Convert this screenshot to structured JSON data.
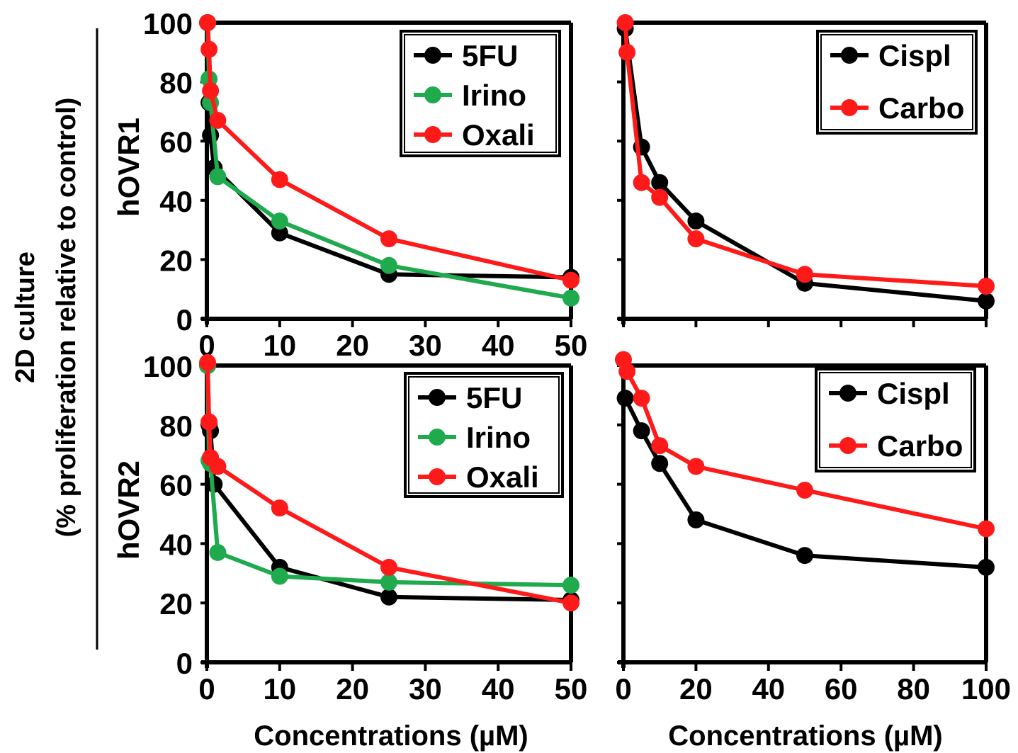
{
  "figure": {
    "ylabel_line1": "2D culture",
    "ylabel_line2": "(% proliferation relative to control)",
    "xlabel": "Concentrations (µM)"
  },
  "colors": {
    "black": "#000000",
    "green": "#1faa4e",
    "red": "#ff1a1a"
  },
  "chart_data": [
    {
      "type": "line",
      "row_label": "hOVR1",
      "xlim": [
        0,
        50
      ],
      "ylim": [
        0,
        100
      ],
      "x_ticks": [
        "0",
        "10",
        "20",
        "30",
        "40",
        "50"
      ],
      "y_ticks": [
        "0",
        "20",
        "40",
        "60",
        "80",
        "100"
      ],
      "legend": "top-right",
      "series": [
        {
          "name": "5FU",
          "color": "#000000",
          "x": [
            0.1,
            0.3,
            0.5,
            1,
            10,
            25,
            50
          ],
          "y": [
            100,
            73,
            62,
            51,
            29,
            15,
            14
          ]
        },
        {
          "name": "Irino",
          "color": "#1faa4e",
          "x": [
            0.1,
            0.3,
            0.5,
            1.5,
            10,
            25,
            50
          ],
          "y": [
            100,
            81,
            73,
            48,
            33,
            18,
            7
          ]
        },
        {
          "name": "Oxali",
          "color": "#ff1a1a",
          "x": [
            0.1,
            0.3,
            0.5,
            1.5,
            10,
            25,
            50
          ],
          "y": [
            100,
            91,
            77,
            67,
            47,
            27,
            13
          ]
        }
      ]
    },
    {
      "type": "line",
      "row_label": "",
      "xlim": [
        0,
        100
      ],
      "ylim": [
        0,
        100
      ],
      "x_ticks": [],
      "y_ticks": [],
      "legend": "top-right",
      "series": [
        {
          "name": "Cispl",
          "color": "#000000",
          "x": [
            0.5,
            5,
            10,
            20,
            50,
            100
          ],
          "y": [
            98,
            58,
            46,
            33,
            12,
            6
          ]
        },
        {
          "name": "Carbo",
          "color": "#ff1a1a",
          "x": [
            0.5,
            1,
            5,
            10,
            20,
            50,
            100
          ],
          "y": [
            100,
            90,
            46,
            41,
            27,
            15,
            11
          ]
        }
      ]
    },
    {
      "type": "line",
      "row_label": "hOVR2",
      "xlim": [
        0,
        50
      ],
      "ylim": [
        0,
        100
      ],
      "x_ticks": [
        "0",
        "10",
        "20",
        "30",
        "40",
        "50"
      ],
      "y_ticks": [
        "0",
        "20",
        "40",
        "60",
        "80",
        "100"
      ],
      "legend": "top-right",
      "series": [
        {
          "name": "5FU",
          "color": "#000000",
          "x": [
            0.1,
            0.3,
            0.5,
            1,
            10,
            25,
            50
          ],
          "y": [
            100,
            80,
            78,
            60,
            32,
            22,
            21
          ]
        },
        {
          "name": "Irino",
          "color": "#1faa4e",
          "x": [
            0.1,
            0.3,
            0.5,
            1.5,
            10,
            25,
            50
          ],
          "y": [
            100,
            68,
            67,
            37,
            29,
            27,
            26
          ]
        },
        {
          "name": "Oxali",
          "color": "#ff1a1a",
          "x": [
            0.1,
            0.3,
            0.5,
            1.5,
            10,
            25,
            50
          ],
          "y": [
            101,
            81,
            69,
            66,
            52,
            32,
            20
          ]
        }
      ]
    },
    {
      "type": "line",
      "row_label": "",
      "xlim": [
        0,
        100
      ],
      "ylim": [
        0,
        100
      ],
      "x_ticks": [
        "0",
        "20",
        "40",
        "60",
        "80",
        "100"
      ],
      "y_ticks": [],
      "legend": "top-right",
      "series": [
        {
          "name": "Cispl",
          "color": "#000000",
          "x": [
            0.5,
            5,
            10,
            20,
            50,
            100
          ],
          "y": [
            89,
            78,
            67,
            48,
            36,
            32
          ]
        },
        {
          "name": "Carbo",
          "color": "#ff1a1a",
          "x": [
            0,
            1,
            5,
            10,
            20,
            50,
            100
          ],
          "y": [
            102,
            98,
            89,
            73,
            66,
            58,
            45
          ]
        }
      ]
    }
  ]
}
